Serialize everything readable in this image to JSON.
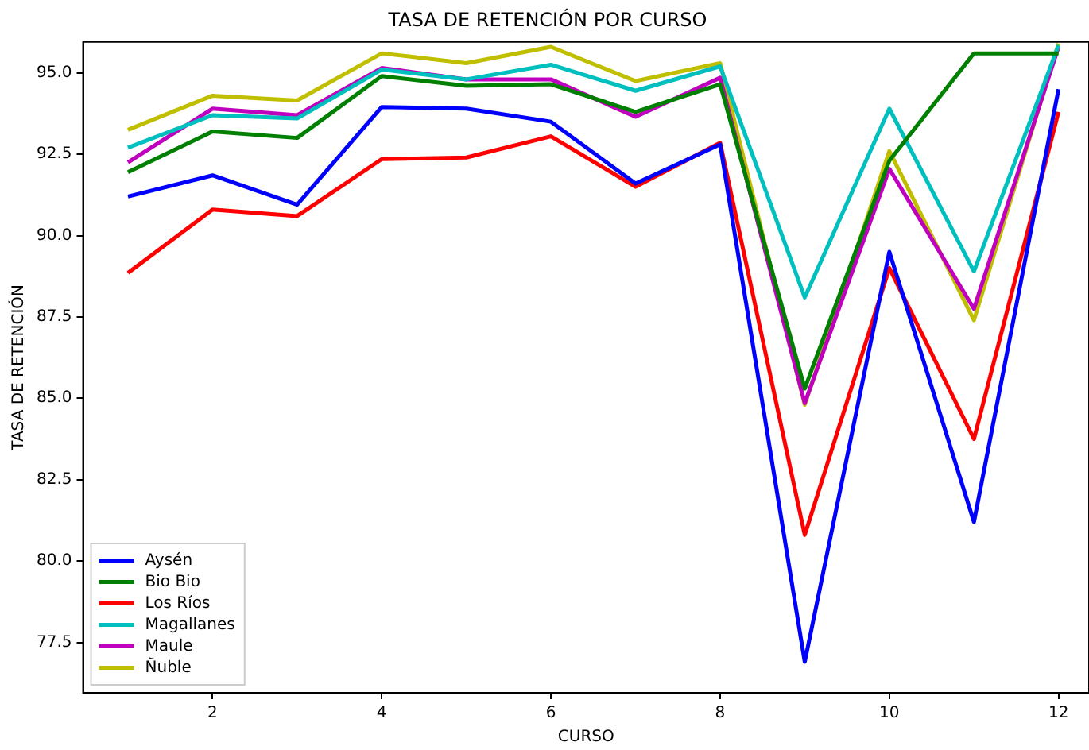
{
  "chart_data": {
    "type": "line",
    "title": "TASA DE RETENCIÓN POR CURSO",
    "xlabel": "CURSO",
    "ylabel": "TASA DE RETENCIÓN",
    "x": [
      1,
      2,
      3,
      4,
      5,
      6,
      7,
      8,
      9,
      10,
      11,
      12
    ],
    "series": [
      {
        "name": "Aysén",
        "color": "#0000ff",
        "values": [
          91.2,
          91.85,
          90.95,
          93.95,
          93.9,
          93.5,
          91.6,
          92.8,
          76.9,
          89.5,
          81.2,
          94.5
        ]
      },
      {
        "name": "Bio Bio",
        "color": "#008000",
        "values": [
          91.95,
          93.2,
          93.0,
          94.9,
          94.6,
          94.65,
          93.8,
          94.65,
          85.3,
          92.3,
          95.6,
          95.6
        ]
      },
      {
        "name": "Los Ríos",
        "color": "#ff0000",
        "values": [
          88.85,
          90.8,
          90.6,
          92.35,
          92.4,
          93.05,
          91.5,
          92.85,
          80.8,
          89.0,
          83.75,
          93.8
        ]
      },
      {
        "name": "Magallanes",
        "color": "#00bfbf",
        "values": [
          92.7,
          93.7,
          93.6,
          95.1,
          94.8,
          95.25,
          94.45,
          95.2,
          88.1,
          93.9,
          88.9,
          95.85
        ]
      },
      {
        "name": "Maule",
        "color": "#bf00bf",
        "values": [
          92.25,
          93.9,
          93.7,
          95.15,
          94.8,
          94.8,
          93.65,
          94.85,
          84.85,
          92.05,
          87.75,
          95.8
        ]
      },
      {
        "name": "Ñuble",
        "color": "#bfbf00",
        "values": [
          93.25,
          94.3,
          94.15,
          95.6,
          95.3,
          95.8,
          94.75,
          95.3,
          84.8,
          92.6,
          87.4,
          95.9
        ]
      }
    ],
    "xlim": [
      0.47,
      12.36
    ],
    "ylim": [
      75.95,
      95.95
    ],
    "xticks": [
      2,
      4,
      6,
      8,
      10,
      12
    ],
    "yticks": [
      {
        "value": 77.5,
        "label": "77.5"
      },
      {
        "value": 80,
        "label": "80.0"
      },
      {
        "value": 82.5,
        "label": "82.5"
      },
      {
        "value": 85,
        "label": "85.0"
      },
      {
        "value": 87.5,
        "label": "87.5"
      },
      {
        "value": 90,
        "label": "90.0"
      },
      {
        "value": 92.5,
        "label": "92.5"
      },
      {
        "value": 95,
        "label": "95.0"
      }
    ],
    "grid": false,
    "legend": "bottom left",
    "marker": "none",
    "line_style": "solid"
  }
}
